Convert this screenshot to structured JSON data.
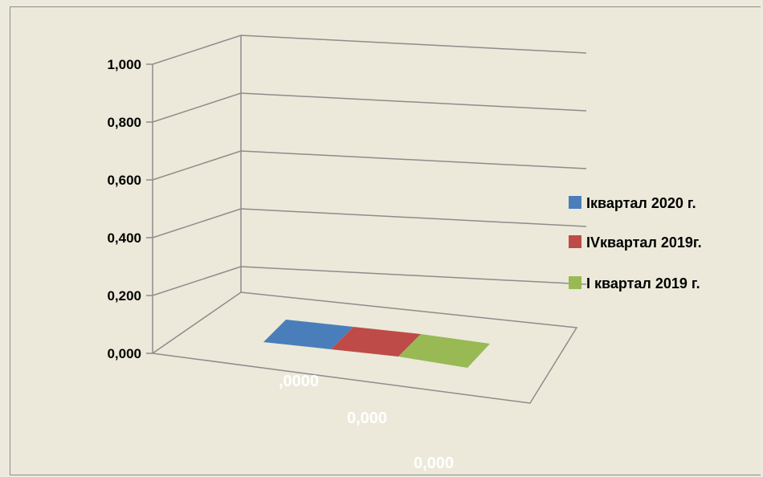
{
  "chart_data": {
    "type": "bar",
    "style": "3d",
    "categories": [
      ""
    ],
    "series": [
      {
        "name": "Iквартал 2020 г.",
        "values": [
          0
        ],
        "color": "#4a7ebb"
      },
      {
        "name": "IVквартал 2019г.",
        "values": [
          0
        ],
        "color": "#be4b48"
      },
      {
        "name": "I квартал 2019 г.",
        "values": [
          0
        ],
        "color": "#98b954"
      }
    ],
    "y_ticks": [
      "0,000",
      "0,200",
      "0,400",
      "0,600",
      "0,800",
      "1,000"
    ],
    "ylim": [
      0,
      1
    ],
    "data_labels": [
      ",0000",
      "0,000",
      "0,000"
    ],
    "grid": true,
    "legend_position": "right",
    "background_color": "#ece9da",
    "gridline_color": "#8c8c8c"
  }
}
